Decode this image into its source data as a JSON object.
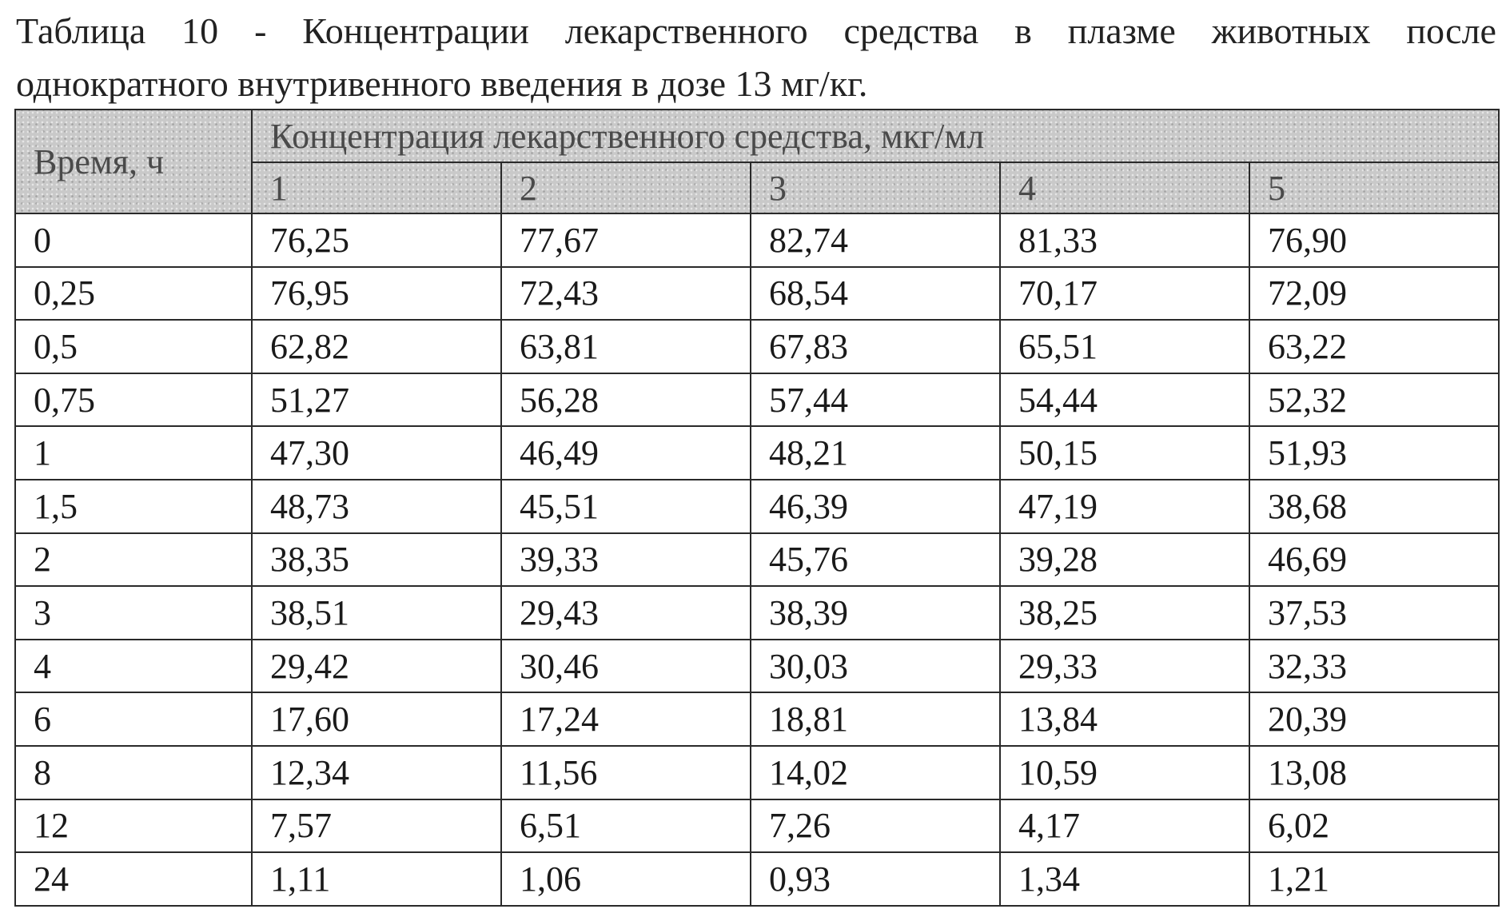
{
  "caption": {
    "line1_words": [
      "Таблица",
      "10",
      "-",
      "Концентрации",
      "лекарственного",
      "средства",
      "в",
      "плазме",
      "животных",
      "после"
    ],
    "line2": "однократного внутривенного введения в дозе 13 мг/кг."
  },
  "table": {
    "time_header": "Время, ч",
    "concentration_header": "Концентрация лекарственного средства, мкг/мл",
    "animal_headers": [
      "1",
      "2",
      "3",
      "4",
      "5"
    ],
    "rows": [
      {
        "time": "0",
        "values": [
          "76,25",
          "77,67",
          "82,74",
          "81,33",
          "76,90"
        ]
      },
      {
        "time": "0,25",
        "values": [
          "76,95",
          "72,43",
          "68,54",
          "70,17",
          "72,09"
        ]
      },
      {
        "time": "0,5",
        "values": [
          "62,82",
          "63,81",
          "67,83",
          "65,51",
          "63,22"
        ]
      },
      {
        "time": "0,75",
        "values": [
          "51,27",
          "56,28",
          "57,44",
          "54,44",
          "52,32"
        ]
      },
      {
        "time": "1",
        "values": [
          "47,30",
          "46,49",
          "48,21",
          "50,15",
          "51,93"
        ]
      },
      {
        "time": "1,5",
        "values": [
          "48,73",
          "45,51",
          "46,39",
          "47,19",
          "38,68"
        ]
      },
      {
        "time": "2",
        "values": [
          "38,35",
          "39,33",
          "45,76",
          "39,28",
          "46,69"
        ]
      },
      {
        "time": "3",
        "values": [
          "38,51",
          "29,43",
          "38,39",
          "38,25",
          "37,53"
        ]
      },
      {
        "time": "4",
        "values": [
          "29,42",
          "30,46",
          "30,03",
          "29,33",
          "32,33"
        ]
      },
      {
        "time": "6",
        "values": [
          "17,60",
          "17,24",
          "18,81",
          "13,84",
          "20,39"
        ]
      },
      {
        "time": "8",
        "values": [
          "12,34",
          "11,56",
          "14,02",
          "10,59",
          "13,08"
        ]
      },
      {
        "time": "12",
        "values": [
          "7,57",
          "6,51",
          "7,26",
          "4,17",
          "6,02"
        ]
      },
      {
        "time": "24",
        "values": [
          "1,11",
          "1,06",
          "0,93",
          "1,34",
          "1,21"
        ]
      }
    ]
  },
  "colors": {
    "header_shade": "#c9c9c9",
    "border": "#2a2a2a",
    "text": "#1a1a1a"
  }
}
